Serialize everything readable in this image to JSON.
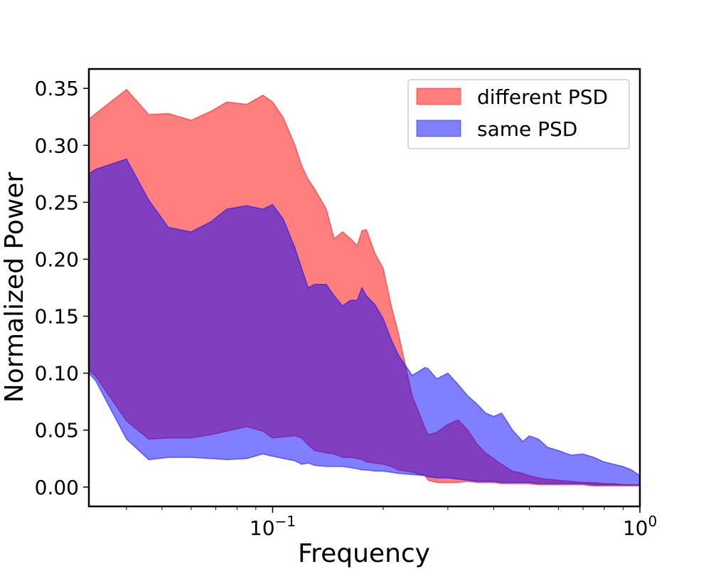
{
  "chart_data": {
    "type": "area",
    "title": "",
    "xlabel": "Frequency",
    "ylabel": "Normalized Power",
    "xscale": "log",
    "xlim": [
      0.0316,
      1.0
    ],
    "ylim": [
      -0.017,
      0.367
    ],
    "legend_position": "top-right",
    "yticks": [
      0.0,
      0.05,
      0.1,
      0.15,
      0.2,
      0.25,
      0.3,
      0.35
    ],
    "ytick_labels": [
      "0.00",
      "0.05",
      "0.10",
      "0.15",
      "0.20",
      "0.25",
      "0.30",
      "0.35"
    ],
    "xticks": [
      {
        "value": 0.1,
        "base": "10",
        "exponent": "−1"
      },
      {
        "value": 1.0,
        "base": "10",
        "exponent": "0"
      }
    ],
    "series": [
      {
        "name": "different PSD",
        "color": "#ff0000",
        "opacity": 0.5,
        "x": [
          0.0316,
          0.033,
          0.04,
          0.046,
          0.052,
          0.06,
          0.068,
          0.075,
          0.085,
          0.094,
          0.1,
          0.107,
          0.115,
          0.12,
          0.125,
          0.13,
          0.14,
          0.147,
          0.155,
          0.163,
          0.17,
          0.175,
          0.18,
          0.19,
          0.2,
          0.21,
          0.22,
          0.24,
          0.26,
          0.265,
          0.28,
          0.3,
          0.32,
          0.34,
          0.36,
          0.38,
          0.4,
          0.42,
          0.45,
          0.48,
          0.5,
          0.53,
          0.56,
          0.6,
          0.65,
          0.7,
          0.75,
          0.8,
          0.85,
          0.9,
          0.95,
          1.0
        ],
        "upper": [
          0.323,
          0.328,
          0.349,
          0.327,
          0.328,
          0.322,
          0.33,
          0.338,
          0.336,
          0.344,
          0.338,
          0.324,
          0.3,
          0.282,
          0.27,
          0.262,
          0.244,
          0.218,
          0.224,
          0.218,
          0.212,
          0.225,
          0.226,
          0.205,
          0.192,
          0.16,
          0.135,
          0.08,
          0.052,
          0.046,
          0.048,
          0.055,
          0.059,
          0.05,
          0.038,
          0.03,
          0.025,
          0.02,
          0.014,
          0.012,
          0.01,
          0.008,
          0.007,
          0.006,
          0.005,
          0.004,
          0.004,
          0.003,
          0.003,
          0.002,
          0.002,
          0.002
        ],
        "lower": [
          0.103,
          0.097,
          0.058,
          0.042,
          0.043,
          0.043,
          0.046,
          0.049,
          0.053,
          0.049,
          0.043,
          0.044,
          0.045,
          0.043,
          0.037,
          0.032,
          0.03,
          0.029,
          0.026,
          0.026,
          0.025,
          0.024,
          0.022,
          0.021,
          0.02,
          0.018,
          0.015,
          0.013,
          0.01,
          0.006,
          0.004,
          0.004,
          0.004,
          0.005,
          0.004,
          0.004,
          0.004,
          0.003,
          0.003,
          0.003,
          0.003,
          0.002,
          0.002,
          0.002,
          0.002,
          0.002,
          0.001,
          0.001,
          0.001,
          0.001,
          0.001,
          0.001
        ]
      },
      {
        "name": "same PSD",
        "color": "#0000ff",
        "opacity": 0.5,
        "x": [
          0.0316,
          0.033,
          0.04,
          0.046,
          0.052,
          0.06,
          0.068,
          0.075,
          0.085,
          0.094,
          0.1,
          0.107,
          0.115,
          0.12,
          0.125,
          0.13,
          0.14,
          0.147,
          0.155,
          0.163,
          0.17,
          0.175,
          0.18,
          0.19,
          0.2,
          0.21,
          0.22,
          0.24,
          0.26,
          0.265,
          0.28,
          0.3,
          0.32,
          0.34,
          0.36,
          0.38,
          0.4,
          0.42,
          0.45,
          0.48,
          0.5,
          0.53,
          0.56,
          0.6,
          0.65,
          0.7,
          0.75,
          0.8,
          0.85,
          0.9,
          0.95,
          1.0
        ],
        "upper": [
          0.275,
          0.279,
          0.288,
          0.252,
          0.228,
          0.224,
          0.233,
          0.244,
          0.247,
          0.244,
          0.248,
          0.235,
          0.21,
          0.192,
          0.175,
          0.178,
          0.178,
          0.168,
          0.159,
          0.164,
          0.164,
          0.175,
          0.168,
          0.16,
          0.148,
          0.13,
          0.116,
          0.098,
          0.105,
          0.104,
          0.095,
          0.1,
          0.09,
          0.08,
          0.073,
          0.065,
          0.062,
          0.065,
          0.05,
          0.04,
          0.045,
          0.042,
          0.035,
          0.032,
          0.028,
          0.029,
          0.026,
          0.022,
          0.02,
          0.018,
          0.015,
          0.01
        ],
        "lower": [
          0.1,
          0.093,
          0.042,
          0.024,
          0.026,
          0.026,
          0.025,
          0.024,
          0.025,
          0.029,
          0.027,
          0.025,
          0.023,
          0.02,
          0.021,
          0.019,
          0.018,
          0.018,
          0.018,
          0.017,
          0.016,
          0.015,
          0.015,
          0.014,
          0.014,
          0.013,
          0.012,
          0.011,
          0.01,
          0.009,
          0.008,
          0.008,
          0.007,
          0.006,
          0.005,
          0.005,
          0.005,
          0.004,
          0.004,
          0.004,
          0.004,
          0.003,
          0.003,
          0.003,
          0.003,
          0.003,
          0.002,
          0.002,
          0.002,
          0.002,
          0.002,
          0.002
        ]
      }
    ]
  }
}
